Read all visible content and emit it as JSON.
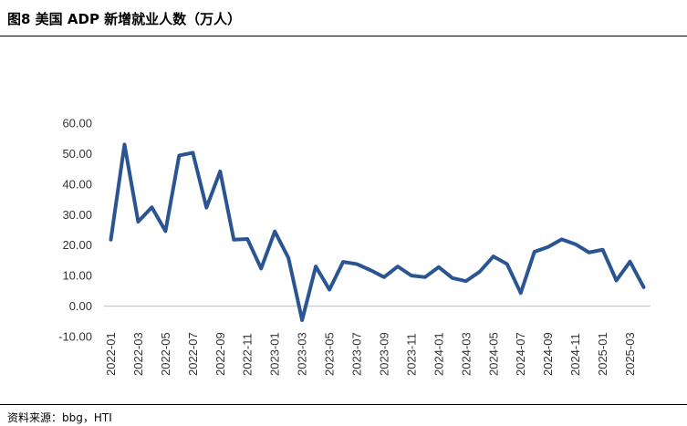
{
  "figure": {
    "title": "图8  美国 ADP 新增就业人数（万人）",
    "source": "资料来源：bbg，HTI"
  },
  "colors": {
    "line": "#2a5592",
    "axis": "#bfbfbf",
    "text": "#333333"
  },
  "chart_data": {
    "type": "line",
    "title": "",
    "xlabel": "",
    "ylabel": "",
    "ylim": [
      -10,
      60
    ],
    "grid": false,
    "legend": "none",
    "yticks": [
      "-10.00",
      "0.00",
      "10.00",
      "20.00",
      "30.00",
      "40.00",
      "50.00",
      "60.00"
    ],
    "xticks": [
      "2022-01",
      "2022-03",
      "2022-05",
      "2022-07",
      "2022-09",
      "2022-11",
      "2023-01",
      "2023-03",
      "2023-05",
      "2023-07",
      "2023-09",
      "2023-11",
      "2024-01",
      "2024-03",
      "2024-05",
      "2024-07",
      "2024-09",
      "2024-11",
      "2025-01",
      "2025-03"
    ],
    "x": [
      "2022-01",
      "2022-02",
      "2022-03",
      "2022-04",
      "2022-05",
      "2022-06",
      "2022-07",
      "2022-08",
      "2022-09",
      "2022-10",
      "2022-11",
      "2022-12",
      "2023-01",
      "2023-02",
      "2023-03",
      "2023-04",
      "2023-05",
      "2023-06",
      "2023-07",
      "2023-08",
      "2023-09",
      "2023-10",
      "2023-11",
      "2023-12",
      "2024-01",
      "2024-02",
      "2024-03",
      "2024-04",
      "2024-05",
      "2024-06",
      "2024-07",
      "2024-08",
      "2024-09",
      "2024-10",
      "2024-11",
      "2024-12",
      "2025-01",
      "2025-02",
      "2025-03",
      "2025-04"
    ],
    "series": [
      {
        "values": [
          21.8,
          53.0,
          27.7,
          32.4,
          24.6,
          49.4,
          50.3,
          32.3,
          44.2,
          21.8,
          22.0,
          12.3,
          24.5,
          15.8,
          -4.6,
          13.0,
          5.4,
          14.5,
          13.8,
          11.8,
          9.5,
          13.0,
          10.0,
          9.5,
          12.8,
          9.2,
          8.2,
          11.3,
          16.3,
          13.8,
          4.3,
          17.8,
          19.4,
          21.9,
          20.3,
          17.6,
          18.5,
          8.4,
          14.6,
          6.2
        ]
      }
    ]
  }
}
